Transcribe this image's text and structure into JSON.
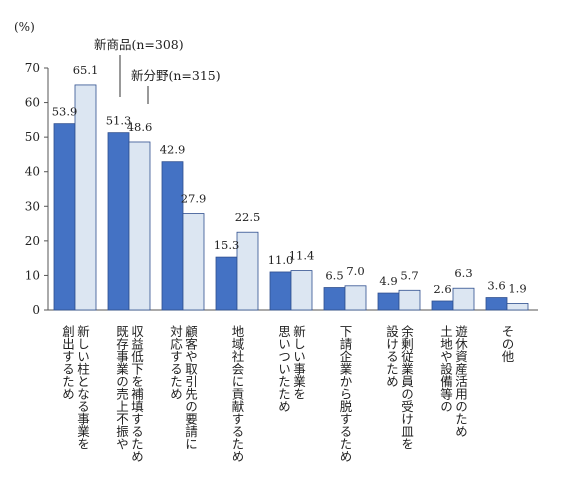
{
  "chart_data": {
    "type": "bar",
    "unit_label": "(%)",
    "ylim": [
      0,
      70
    ],
    "yticks": [
      "0",
      "10",
      "20",
      "30",
      "40",
      "50",
      "60",
      "70"
    ],
    "grid": false,
    "categories": [
      [
        "新しい柱となる事業を",
        "創出するため"
      ],
      [
        "収益低下を補填するため",
        "既存事業の売上不振や"
      ],
      [
        "顧客や取引先の要請に",
        "対応するため"
      ],
      [
        "地域社会に貢献するため"
      ],
      [
        "新しい事業を",
        "思いついたため"
      ],
      [
        "下請企業から脱するため"
      ],
      [
        "余剰従業員の受け皿を",
        "設けるため"
      ],
      [
        "遊休資産活用のため",
        "土地や設備等の"
      ],
      [
        "その他"
      ]
    ],
    "series": [
      {
        "name": "新商品(n=308)",
        "color": "#4472c4",
        "values": [
          53.9,
          51.3,
          42.9,
          15.3,
          11.0,
          6.5,
          4.9,
          2.6,
          3.6
        ],
        "labels": [
          "53.9",
          "51.3",
          "42.9",
          "15.3",
          "11.0",
          "6.5",
          "4.9",
          "2.6",
          "3.6"
        ]
      },
      {
        "name": "新分野(n=315)",
        "color": "#dce6f2",
        "values": [
          65.1,
          48.6,
          27.9,
          22.5,
          11.4,
          7.0,
          5.7,
          6.3,
          1.9
        ],
        "labels": [
          "65.1",
          "48.6",
          "27.9",
          "22.5",
          "11.4",
          "7.0",
          "5.7",
          "6.3",
          "1.9"
        ]
      }
    ]
  }
}
